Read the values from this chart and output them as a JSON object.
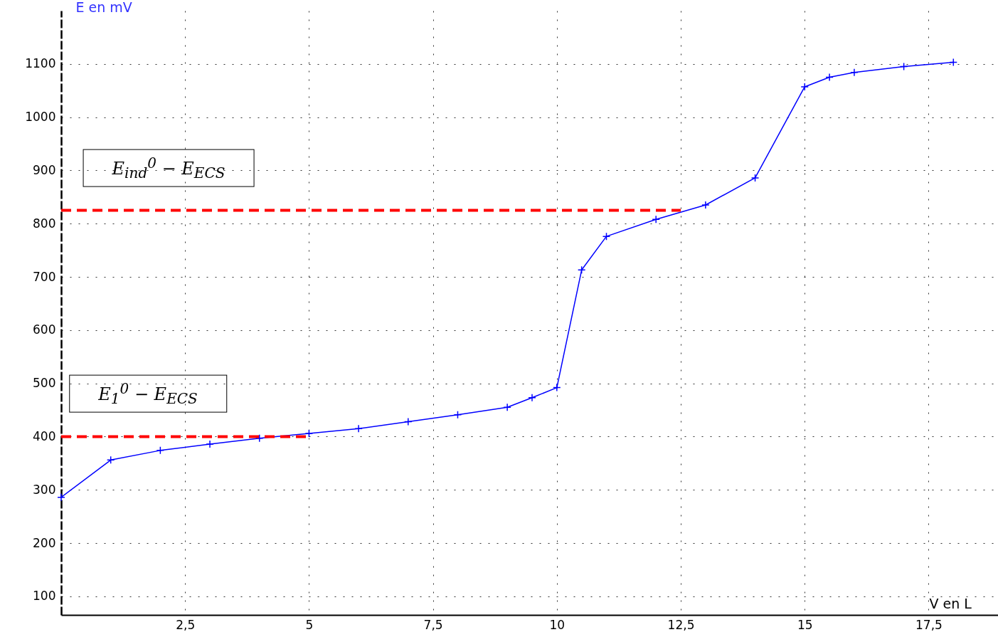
{
  "chart_data": {
    "type": "line",
    "xlabel": "V en L",
    "ylabel": "E en mV",
    "xlim": [
      0,
      18.9
    ],
    "ylim": [
      65,
      1200
    ],
    "xticks": [
      {
        "value": 2.5,
        "label": "2,5"
      },
      5,
      {
        "value": 7.5,
        "label": "7,5"
      },
      10,
      {
        "value": 12.5,
        "label": "12,5"
      },
      15,
      {
        "value": 17.5,
        "label": "17,5"
      }
    ],
    "yticks": [
      100,
      200,
      300,
      400,
      500,
      600,
      700,
      800,
      900,
      1000,
      1100
    ],
    "grid": true,
    "marker": "cross",
    "line_style": "solid",
    "series": [
      {
        "color": "#0000ff",
        "x": [
          0,
          1,
          2,
          3,
          4,
          5,
          6,
          7,
          8,
          9,
          9.5,
          10,
          10.5,
          11,
          12,
          13,
          14,
          15,
          15.5,
          16,
          17,
          18
        ],
        "values": [
          286,
          356,
          374,
          386,
          397,
          406,
          415,
          428,
          441,
          455,
          473,
          492,
          713,
          776,
          808,
          835,
          886,
          1057,
          1075,
          1084,
          1095,
          1103
        ]
      },
      {
        "color": "#ff0000",
        "x": [
          0,
          5
        ],
        "values": [
          400,
          400
        ],
        "marker": "none",
        "line_style": "dashed"
      },
      {
        "color": "#ff0000",
        "x": [
          0,
          12.5
        ],
        "values": [
          825,
          825
        ],
        "marker": "none",
        "line_style": "dashed"
      }
    ],
    "annotations": [
      "E$_{ind}$$^{0}$ − E$_{ECS}$",
      "E$_{1}$$^{0}$ − E$_{ECS}$"
    ]
  }
}
